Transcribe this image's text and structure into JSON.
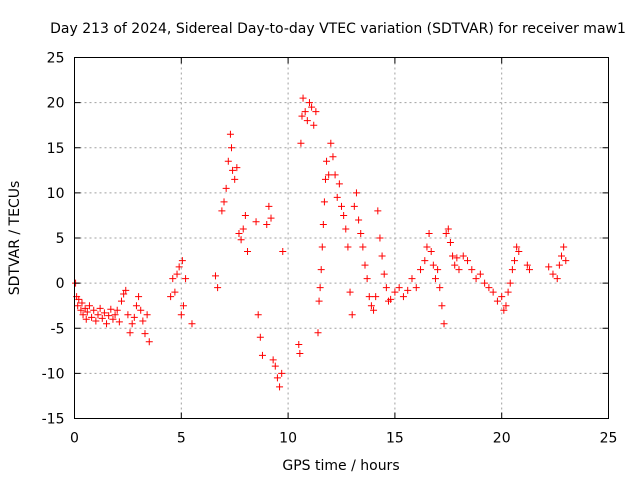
{
  "chart_data": {
    "type": "scatter",
    "title": "Day 213 of 2024, Sidereal Day-to-day VTEC variation (SDTVAR) for receiver maw1",
    "xlabel": "GPS time / hours",
    "ylabel": "SDTVAR / TECUs",
    "xlim": [
      0,
      25
    ],
    "ylim": [
      -15,
      25
    ],
    "xticks": [
      "0",
      "5",
      "10",
      "15",
      "20",
      "25"
    ],
    "yticks": [
      "-15",
      "-10",
      "-5",
      "0",
      "5",
      "10",
      "15",
      "20",
      "25"
    ],
    "grid": true,
    "marker": "+",
    "series_color": "#ff0000",
    "series": [
      {
        "name": "SDTVAR",
        "points": [
          [
            0.05,
            0.0
          ],
          [
            0.1,
            -1.5
          ],
          [
            0.15,
            -2.5
          ],
          [
            0.2,
            -1.8
          ],
          [
            0.3,
            -3.0
          ],
          [
            0.35,
            -2.2
          ],
          [
            0.4,
            -3.5
          ],
          [
            0.5,
            -2.8
          ],
          [
            0.55,
            -4.0
          ],
          [
            0.6,
            -3.2
          ],
          [
            0.7,
            -2.5
          ],
          [
            0.8,
            -3.8
          ],
          [
            0.9,
            -3.0
          ],
          [
            1.0,
            -4.2
          ],
          [
            1.1,
            -3.5
          ],
          [
            1.2,
            -2.8
          ],
          [
            1.3,
            -3.9
          ],
          [
            1.4,
            -3.3
          ],
          [
            1.5,
            -4.5
          ],
          [
            1.6,
            -3.6
          ],
          [
            1.7,
            -2.9
          ],
          [
            1.8,
            -4.0
          ],
          [
            1.9,
            -3.5
          ],
          [
            2.0,
            -3.0
          ],
          [
            2.1,
            -4.3
          ],
          [
            2.2,
            -2.0
          ],
          [
            2.3,
            -1.2
          ],
          [
            2.4,
            -0.8
          ],
          [
            2.5,
            -3.5
          ],
          [
            2.6,
            -5.5
          ],
          [
            2.7,
            -4.5
          ],
          [
            2.8,
            -3.8
          ],
          [
            2.9,
            -2.5
          ],
          [
            3.0,
            -1.5
          ],
          [
            3.1,
            -3.0
          ],
          [
            3.2,
            -4.2
          ],
          [
            3.3,
            -5.6
          ],
          [
            3.4,
            -3.5
          ],
          [
            3.5,
            -6.5
          ],
          [
            4.5,
            -1.5
          ],
          [
            4.6,
            0.5
          ],
          [
            4.7,
            -1.0
          ],
          [
            4.8,
            1.0
          ],
          [
            4.9,
            1.8
          ],
          [
            5.0,
            -3.5
          ],
          [
            5.05,
            2.5
          ],
          [
            5.1,
            -2.5
          ],
          [
            5.2,
            0.5
          ],
          [
            5.5,
            -4.5
          ],
          [
            6.6,
            0.8
          ],
          [
            6.7,
            -0.5
          ],
          [
            6.9,
            8.0
          ],
          [
            7.0,
            9.0
          ],
          [
            7.1,
            10.5
          ],
          [
            7.2,
            13.5
          ],
          [
            7.3,
            16.5
          ],
          [
            7.35,
            15.0
          ],
          [
            7.4,
            12.5
          ],
          [
            7.5,
            11.5
          ],
          [
            7.6,
            12.8
          ],
          [
            7.7,
            5.5
          ],
          [
            7.8,
            4.8
          ],
          [
            7.9,
            6.0
          ],
          [
            8.0,
            7.5
          ],
          [
            8.1,
            3.5
          ],
          [
            8.5,
            6.8
          ],
          [
            8.6,
            -3.5
          ],
          [
            8.7,
            -6.0
          ],
          [
            8.8,
            -8.0
          ],
          [
            9.0,
            6.5
          ],
          [
            9.1,
            8.5
          ],
          [
            9.2,
            7.2
          ],
          [
            9.3,
            -8.5
          ],
          [
            9.4,
            -9.2
          ],
          [
            9.5,
            -10.5
          ],
          [
            9.6,
            -11.5
          ],
          [
            9.7,
            -10.0
          ],
          [
            9.75,
            3.5
          ],
          [
            10.5,
            -6.8
          ],
          [
            10.55,
            -7.8
          ],
          [
            10.6,
            15.5
          ],
          [
            10.65,
            18.5
          ],
          [
            10.7,
            20.5
          ],
          [
            10.8,
            19.0
          ],
          [
            10.9,
            18.0
          ],
          [
            11.0,
            20.0
          ],
          [
            11.1,
            19.5
          ],
          [
            11.2,
            17.5
          ],
          [
            11.3,
            19.0
          ],
          [
            11.4,
            -5.5
          ],
          [
            11.45,
            -2.0
          ],
          [
            11.5,
            -0.5
          ],
          [
            11.55,
            1.5
          ],
          [
            11.6,
            4.0
          ],
          [
            11.65,
            6.5
          ],
          [
            11.7,
            9.0
          ],
          [
            11.75,
            11.5
          ],
          [
            11.8,
            13.5
          ],
          [
            11.9,
            12.0
          ],
          [
            12.0,
            15.5
          ],
          [
            12.1,
            14.0
          ],
          [
            12.2,
            12.0
          ],
          [
            12.3,
            9.5
          ],
          [
            12.4,
            11.0
          ],
          [
            12.5,
            8.5
          ],
          [
            12.6,
            7.5
          ],
          [
            12.7,
            6.0
          ],
          [
            12.8,
            4.0
          ],
          [
            12.9,
            -1.0
          ],
          [
            13.0,
            -3.5
          ],
          [
            13.1,
            8.5
          ],
          [
            13.2,
            10.0
          ],
          [
            13.3,
            7.0
          ],
          [
            13.4,
            5.5
          ],
          [
            13.5,
            4.0
          ],
          [
            13.6,
            2.0
          ],
          [
            13.7,
            0.5
          ],
          [
            13.8,
            -1.5
          ],
          [
            13.9,
            -2.5
          ],
          [
            14.0,
            -3.0
          ],
          [
            14.1,
            -1.5
          ],
          [
            14.2,
            8.0
          ],
          [
            14.3,
            5.0
          ],
          [
            14.4,
            3.0
          ],
          [
            14.5,
            1.0
          ],
          [
            14.6,
            -0.5
          ],
          [
            14.7,
            -2.0
          ],
          [
            14.8,
            -1.8
          ],
          [
            15.0,
            -1.0
          ],
          [
            15.2,
            -0.5
          ],
          [
            15.4,
            -1.5
          ],
          [
            15.6,
            -0.8
          ],
          [
            15.8,
            0.5
          ],
          [
            16.0,
            -0.5
          ],
          [
            16.2,
            1.5
          ],
          [
            16.4,
            2.5
          ],
          [
            16.5,
            4.0
          ],
          [
            16.6,
            5.5
          ],
          [
            16.7,
            3.5
          ],
          [
            16.8,
            2.0
          ],
          [
            16.9,
            0.5
          ],
          [
            17.0,
            1.5
          ],
          [
            17.1,
            -0.5
          ],
          [
            17.2,
            -2.5
          ],
          [
            17.3,
            -4.5
          ],
          [
            17.4,
            5.5
          ],
          [
            17.5,
            6.0
          ],
          [
            17.6,
            4.5
          ],
          [
            17.7,
            3.0
          ],
          [
            17.8,
            2.0
          ],
          [
            17.9,
            2.8
          ],
          [
            18.0,
            1.5
          ],
          [
            18.2,
            3.0
          ],
          [
            18.4,
            2.5
          ],
          [
            18.6,
            1.5
          ],
          [
            18.8,
            0.5
          ],
          [
            19.0,
            1.0
          ],
          [
            19.2,
            0.0
          ],
          [
            19.4,
            -0.5
          ],
          [
            19.6,
            -1.0
          ],
          [
            19.8,
            -2.0
          ],
          [
            20.0,
            -1.5
          ],
          [
            20.1,
            -3.0
          ],
          [
            20.2,
            -2.5
          ],
          [
            20.3,
            -1.0
          ],
          [
            20.4,
            0.0
          ],
          [
            20.5,
            1.5
          ],
          [
            20.6,
            2.5
          ],
          [
            20.7,
            4.0
          ],
          [
            20.8,
            3.5
          ],
          [
            21.2,
            2.0
          ],
          [
            21.3,
            1.5
          ],
          [
            22.2,
            1.8
          ],
          [
            22.4,
            1.0
          ],
          [
            22.6,
            0.5
          ],
          [
            22.7,
            2.0
          ],
          [
            22.8,
            3.0
          ],
          [
            22.9,
            4.0
          ],
          [
            23.0,
            2.5
          ]
        ]
      }
    ]
  }
}
